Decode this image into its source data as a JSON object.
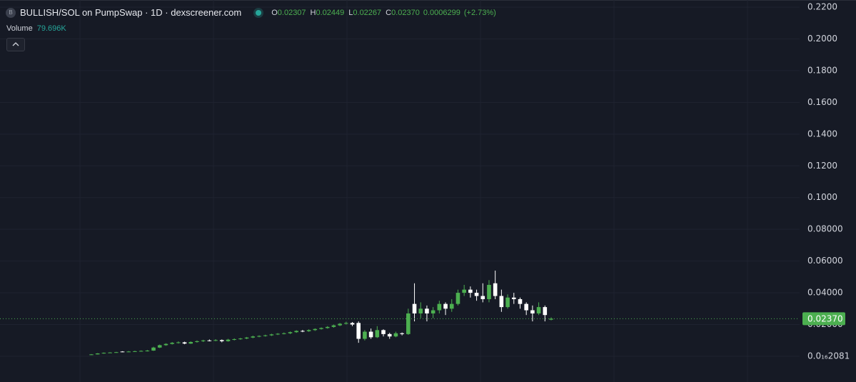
{
  "chart_data": {
    "type": "candlestick",
    "icon_letter": "B",
    "title": "BULLISH/SOL on PumpSwap · 1D · dexscreener.com",
    "ohlc_labels": [
      "O",
      "H",
      "L",
      "C"
    ],
    "ohlc_values": [
      0.02307,
      0.02449,
      0.02267,
      {
        "value": 0.0237,
        "label": "0.02370"
      }
    ],
    "change": 0.0006299,
    "change_pct": {
      "value": 2.73,
      "label": "(+2.73%)"
    },
    "volume_label": "Volume",
    "volume": {
      "value": 79696,
      "label": "79.696K"
    },
    "last_price": {
      "value": 0.0237,
      "label": "0.02370"
    },
    "up_color": "#4caf50",
    "down_color": "#ffffff",
    "grid": true,
    "ylim": [
      -0.0162,
      0.2245
    ],
    "yticks": [
      {
        "value": 0.22,
        "label": "0.2200"
      },
      {
        "value": 0.2,
        "label": "0.2000"
      },
      {
        "value": 0.18,
        "label": "0.1800"
      },
      {
        "value": 0.16,
        "label": "0.1600"
      },
      {
        "value": 0.14,
        "label": "0.1400"
      },
      {
        "value": 0.12,
        "label": "0.1200"
      },
      {
        "value": 0.1,
        "label": "0.1000"
      },
      {
        "value": 0.08,
        "label": "0.08000"
      },
      {
        "value": 0.06,
        "label": "0.06000"
      },
      {
        "value": 0.04,
        "label": "0.04000"
      },
      {
        "value": 0.02,
        "label": "0.02000"
      },
      {
        "value": 2.081e-17,
        "label": "0.0₁₆2081"
      }
    ],
    "categories": [
      null,
      null,
      null,
      null,
      null,
      null,
      null,
      null,
      null,
      null,
      null,
      null,
      null,
      null,
      null,
      null,
      null,
      null,
      null,
      null,
      null,
      null,
      null,
      null,
      null,
      null,
      null,
      null,
      null,
      null,
      null,
      null,
      null,
      null,
      null,
      null,
      null,
      null,
      null,
      null,
      null,
      null,
      null,
      null,
      null,
      null,
      null,
      null,
      null,
      null,
      null,
      null,
      null,
      null,
      null,
      null,
      null,
      null,
      null,
      null,
      null,
      null,
      null,
      null,
      null,
      null,
      null,
      null,
      null,
      null,
      null,
      null,
      null,
      null,
      null
    ],
    "open": [
      0.001,
      0.0012,
      0.0018,
      0.0022,
      0.0024,
      0.003,
      0.0028,
      0.003,
      0.0032,
      0.0034,
      0.0036,
      0.0055,
      0.007,
      0.0078,
      0.0085,
      0.0088,
      0.008,
      0.009,
      0.0095,
      0.01,
      0.0098,
      0.0102,
      0.0095,
      0.0105,
      0.0108,
      0.0112,
      0.0118,
      0.0125,
      0.0128,
      0.0132,
      0.0138,
      0.0142,
      0.0145,
      0.0152,
      0.016,
      0.0158,
      0.0165,
      0.0172,
      0.0178,
      0.0185,
      0.0195,
      0.0205,
      0.021,
      0.021,
      0.011,
      0.0155,
      0.012,
      0.0165,
      0.014,
      0.0125,
      0.0145,
      0.014,
      0.033,
      0.027,
      0.03,
      0.027,
      0.029,
      0.033,
      0.03,
      0.033,
      0.04,
      0.042,
      0.04,
      0.038,
      0.036,
      0.046,
      0.038,
      0.031,
      0.037,
      0.036,
      0.033,
      0.029,
      0.027,
      0.031,
      0.02307
    ],
    "high": [
      0.0014,
      0.002,
      0.0024,
      0.0026,
      0.0028,
      0.0032,
      0.0033,
      0.0035,
      0.0037,
      0.004,
      0.006,
      0.0074,
      0.0082,
      0.009,
      0.0094,
      0.0092,
      0.0094,
      0.01,
      0.0104,
      0.0106,
      0.0108,
      0.0106,
      0.011,
      0.0113,
      0.0116,
      0.0122,
      0.013,
      0.0132,
      0.0136,
      0.0142,
      0.0146,
      0.015,
      0.0156,
      0.0164,
      0.0166,
      0.017,
      0.0176,
      0.0182,
      0.019,
      0.02,
      0.021,
      0.0218,
      0.0216,
      0.022,
      0.0165,
      0.0175,
      0.019,
      0.017,
      0.0148,
      0.0155,
      0.015,
      0.03,
      0.046,
      0.034,
      0.032,
      0.031,
      0.035,
      0.034,
      0.036,
      0.042,
      0.045,
      0.044,
      0.042,
      0.046,
      0.048,
      0.054,
      0.042,
      0.039,
      0.04,
      0.037,
      0.034,
      0.032,
      0.034,
      0.032,
      0.02449
    ],
    "low": [
      0.0008,
      0.0011,
      0.0016,
      0.002,
      0.0022,
      0.0026,
      0.0026,
      0.0028,
      0.003,
      0.003,
      0.0034,
      0.0052,
      0.0066,
      0.0074,
      0.008,
      0.0076,
      0.0078,
      0.0086,
      0.009,
      0.0094,
      0.0095,
      0.0088,
      0.0092,
      0.01,
      0.0104,
      0.0108,
      0.0114,
      0.012,
      0.0124,
      0.0128,
      0.0134,
      0.0138,
      0.014,
      0.0148,
      0.0152,
      0.0154,
      0.016,
      0.0168,
      0.0174,
      0.018,
      0.019,
      0.02,
      0.019,
      0.0085,
      0.01,
      0.011,
      0.0115,
      0.0125,
      0.011,
      0.012,
      0.0132,
      0.0135,
      0.022,
      0.024,
      0.022,
      0.024,
      0.027,
      0.026,
      0.028,
      0.032,
      0.038,
      0.037,
      0.035,
      0.034,
      0.034,
      0.036,
      0.028,
      0.03,
      0.033,
      0.03,
      0.026,
      0.022,
      0.026,
      0.022,
      0.02267
    ],
    "close": [
      0.0012,
      0.0018,
      0.0022,
      0.0024,
      0.0026,
      0.0028,
      0.003,
      0.0032,
      0.0034,
      0.0036,
      0.0055,
      0.007,
      0.0078,
      0.0085,
      0.0088,
      0.008,
      0.009,
      0.0095,
      0.01,
      0.0098,
      0.0102,
      0.0095,
      0.0105,
      0.0108,
      0.0112,
      0.0118,
      0.0125,
      0.0128,
      0.0132,
      0.0138,
      0.0142,
      0.0145,
      0.0152,
      0.016,
      0.0158,
      0.0165,
      0.0172,
      0.0178,
      0.0185,
      0.0195,
      0.0205,
      0.021,
      0.02,
      0.011,
      0.0155,
      0.012,
      0.0165,
      0.014,
      0.0125,
      0.0145,
      0.014,
      0.027,
      0.027,
      0.03,
      0.027,
      0.029,
      0.033,
      0.03,
      0.033,
      0.04,
      0.042,
      0.04,
      0.038,
      0.036,
      0.045,
      0.038,
      0.031,
      0.037,
      0.036,
      0.033,
      0.029,
      0.027,
      0.031,
      0.026,
      0.0237
    ]
  }
}
